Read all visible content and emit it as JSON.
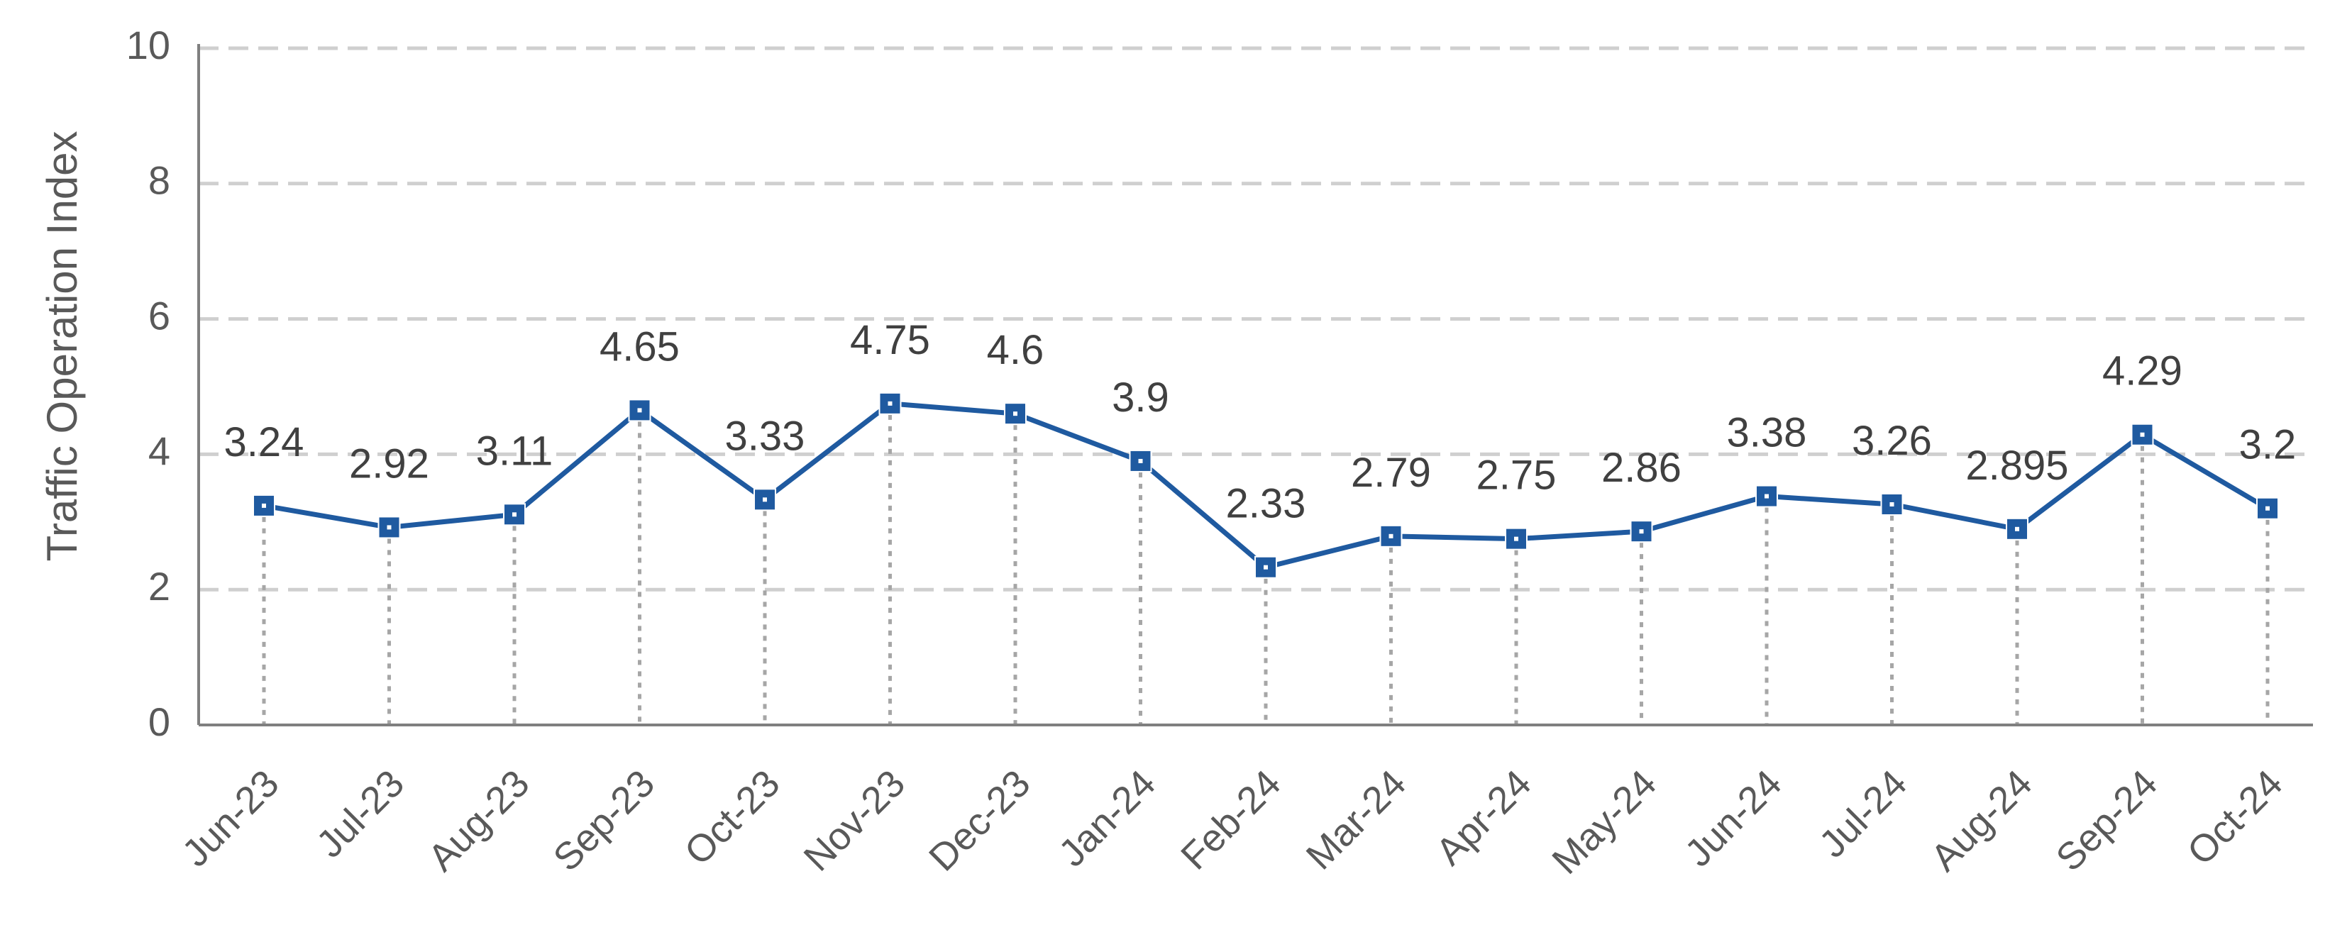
{
  "chart_data": {
    "type": "line",
    "title": "",
    "xlabel": "",
    "ylabel": "Traffic Operation Index",
    "ylim": [
      0,
      10
    ],
    "yticks": [
      "0",
      "2",
      "4",
      "6",
      "8",
      "10"
    ],
    "grid": "horizontal dashed",
    "drop_lines": true,
    "categories": [
      "Jun-23",
      "Jul-23",
      "Aug-23",
      "Sep-23",
      "Oct-23",
      "Nov-23",
      "Dec-23",
      "Jan-24",
      "Feb-24",
      "Mar-24",
      "Apr-24",
      "May-24",
      "Jun-24",
      "Jul-24",
      "Aug-24",
      "Sep-24",
      "Oct-24"
    ],
    "values": [
      3.24,
      2.92,
      3.11,
      4.65,
      3.33,
      4.75,
      4.6,
      3.9,
      2.33,
      2.79,
      2.75,
      2.86,
      3.38,
      3.26,
      2.895,
      4.29,
      3.2
    ],
    "data_labels": [
      "3.24",
      "2.92",
      "3.11",
      "4.65",
      "3.33",
      "4.75",
      "4.6",
      "3.9",
      "2.33",
      "2.79",
      "2.75",
      "2.86",
      "3.38",
      "3.26",
      "2.895",
      "4.29",
      "3.2"
    ],
    "colors": {
      "line": "#1F5AA0",
      "marker": "#1F5AA0",
      "grid": "#CFCFCF",
      "drop_line": "#A6A6A6",
      "axis": "#7F7F7F",
      "text": "#595959"
    }
  }
}
